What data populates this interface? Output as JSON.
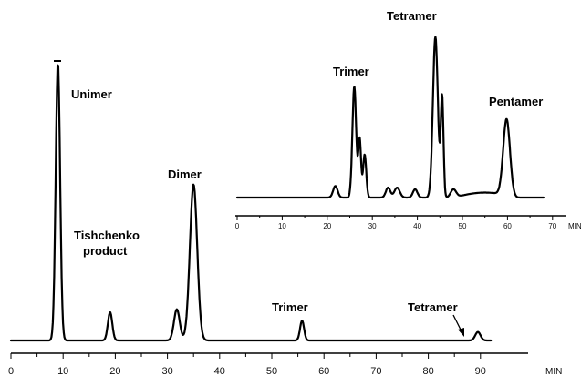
{
  "chart_data": [
    {
      "type": "line",
      "title": "",
      "xlabel": "",
      "ylabel": "",
      "x_unit": "MIN",
      "xlim": [
        0,
        92
      ],
      "x_ticks": [
        0,
        10,
        20,
        30,
        40,
        50,
        60,
        70,
        80,
        90
      ],
      "ylim": [
        0,
        1
      ],
      "grid": false,
      "peaks": [
        {
          "x": 9,
          "y": 0.98,
          "label": "Unimer",
          "note": "off-scale, flat top"
        },
        {
          "x": 19,
          "y": 0.1,
          "label": "Tishchenko product"
        },
        {
          "x": 31.8,
          "y": 0.11,
          "label": ""
        },
        {
          "x": 35,
          "y": 0.55,
          "label": "Dimer"
        },
        {
          "x": 55.8,
          "y": 0.07,
          "label": "Trimer"
        },
        {
          "x": 89.5,
          "y": 0.03,
          "label": "Tetramer"
        }
      ],
      "labels": {
        "unimer": "Unimer",
        "tishchenko_1": "Tishchenko",
        "tishchenko_2": "product",
        "dimer": "Dimer",
        "trimer": "Trimer",
        "tetramer": "Tetramer",
        "unit": "MIN"
      }
    },
    {
      "type": "line",
      "title": "",
      "xlabel": "",
      "ylabel": "",
      "x_unit": "MIN",
      "xlim": [
        0,
        70
      ],
      "x_ticks": [
        0,
        10,
        20,
        30,
        40,
        50,
        60,
        70
      ],
      "ylim": [
        0,
        1
      ],
      "grid": false,
      "peaks": [
        {
          "x": 21.8,
          "y": 0.07,
          "label": ""
        },
        {
          "x": 26,
          "y": 0.67,
          "label": "Trimer"
        },
        {
          "x": 27.2,
          "y": 0.35,
          "label": ""
        },
        {
          "x": 28.3,
          "y": 0.26,
          "label": ""
        },
        {
          "x": 33.5,
          "y": 0.06,
          "label": ""
        },
        {
          "x": 35.5,
          "y": 0.06,
          "label": ""
        },
        {
          "x": 39.5,
          "y": 0.05,
          "label": ""
        },
        {
          "x": 44,
          "y": 0.97,
          "label": "Tetramer"
        },
        {
          "x": 45.5,
          "y": 0.6,
          "label": ""
        },
        {
          "x": 48,
          "y": 0.05,
          "label": ""
        },
        {
          "x": 59.8,
          "y": 0.46,
          "label": "Pentamer"
        }
      ],
      "labels": {
        "trimer": "Trimer",
        "tetramer": "Tetramer",
        "pentamer": "Pentamer",
        "unit": "MIN"
      }
    }
  ]
}
